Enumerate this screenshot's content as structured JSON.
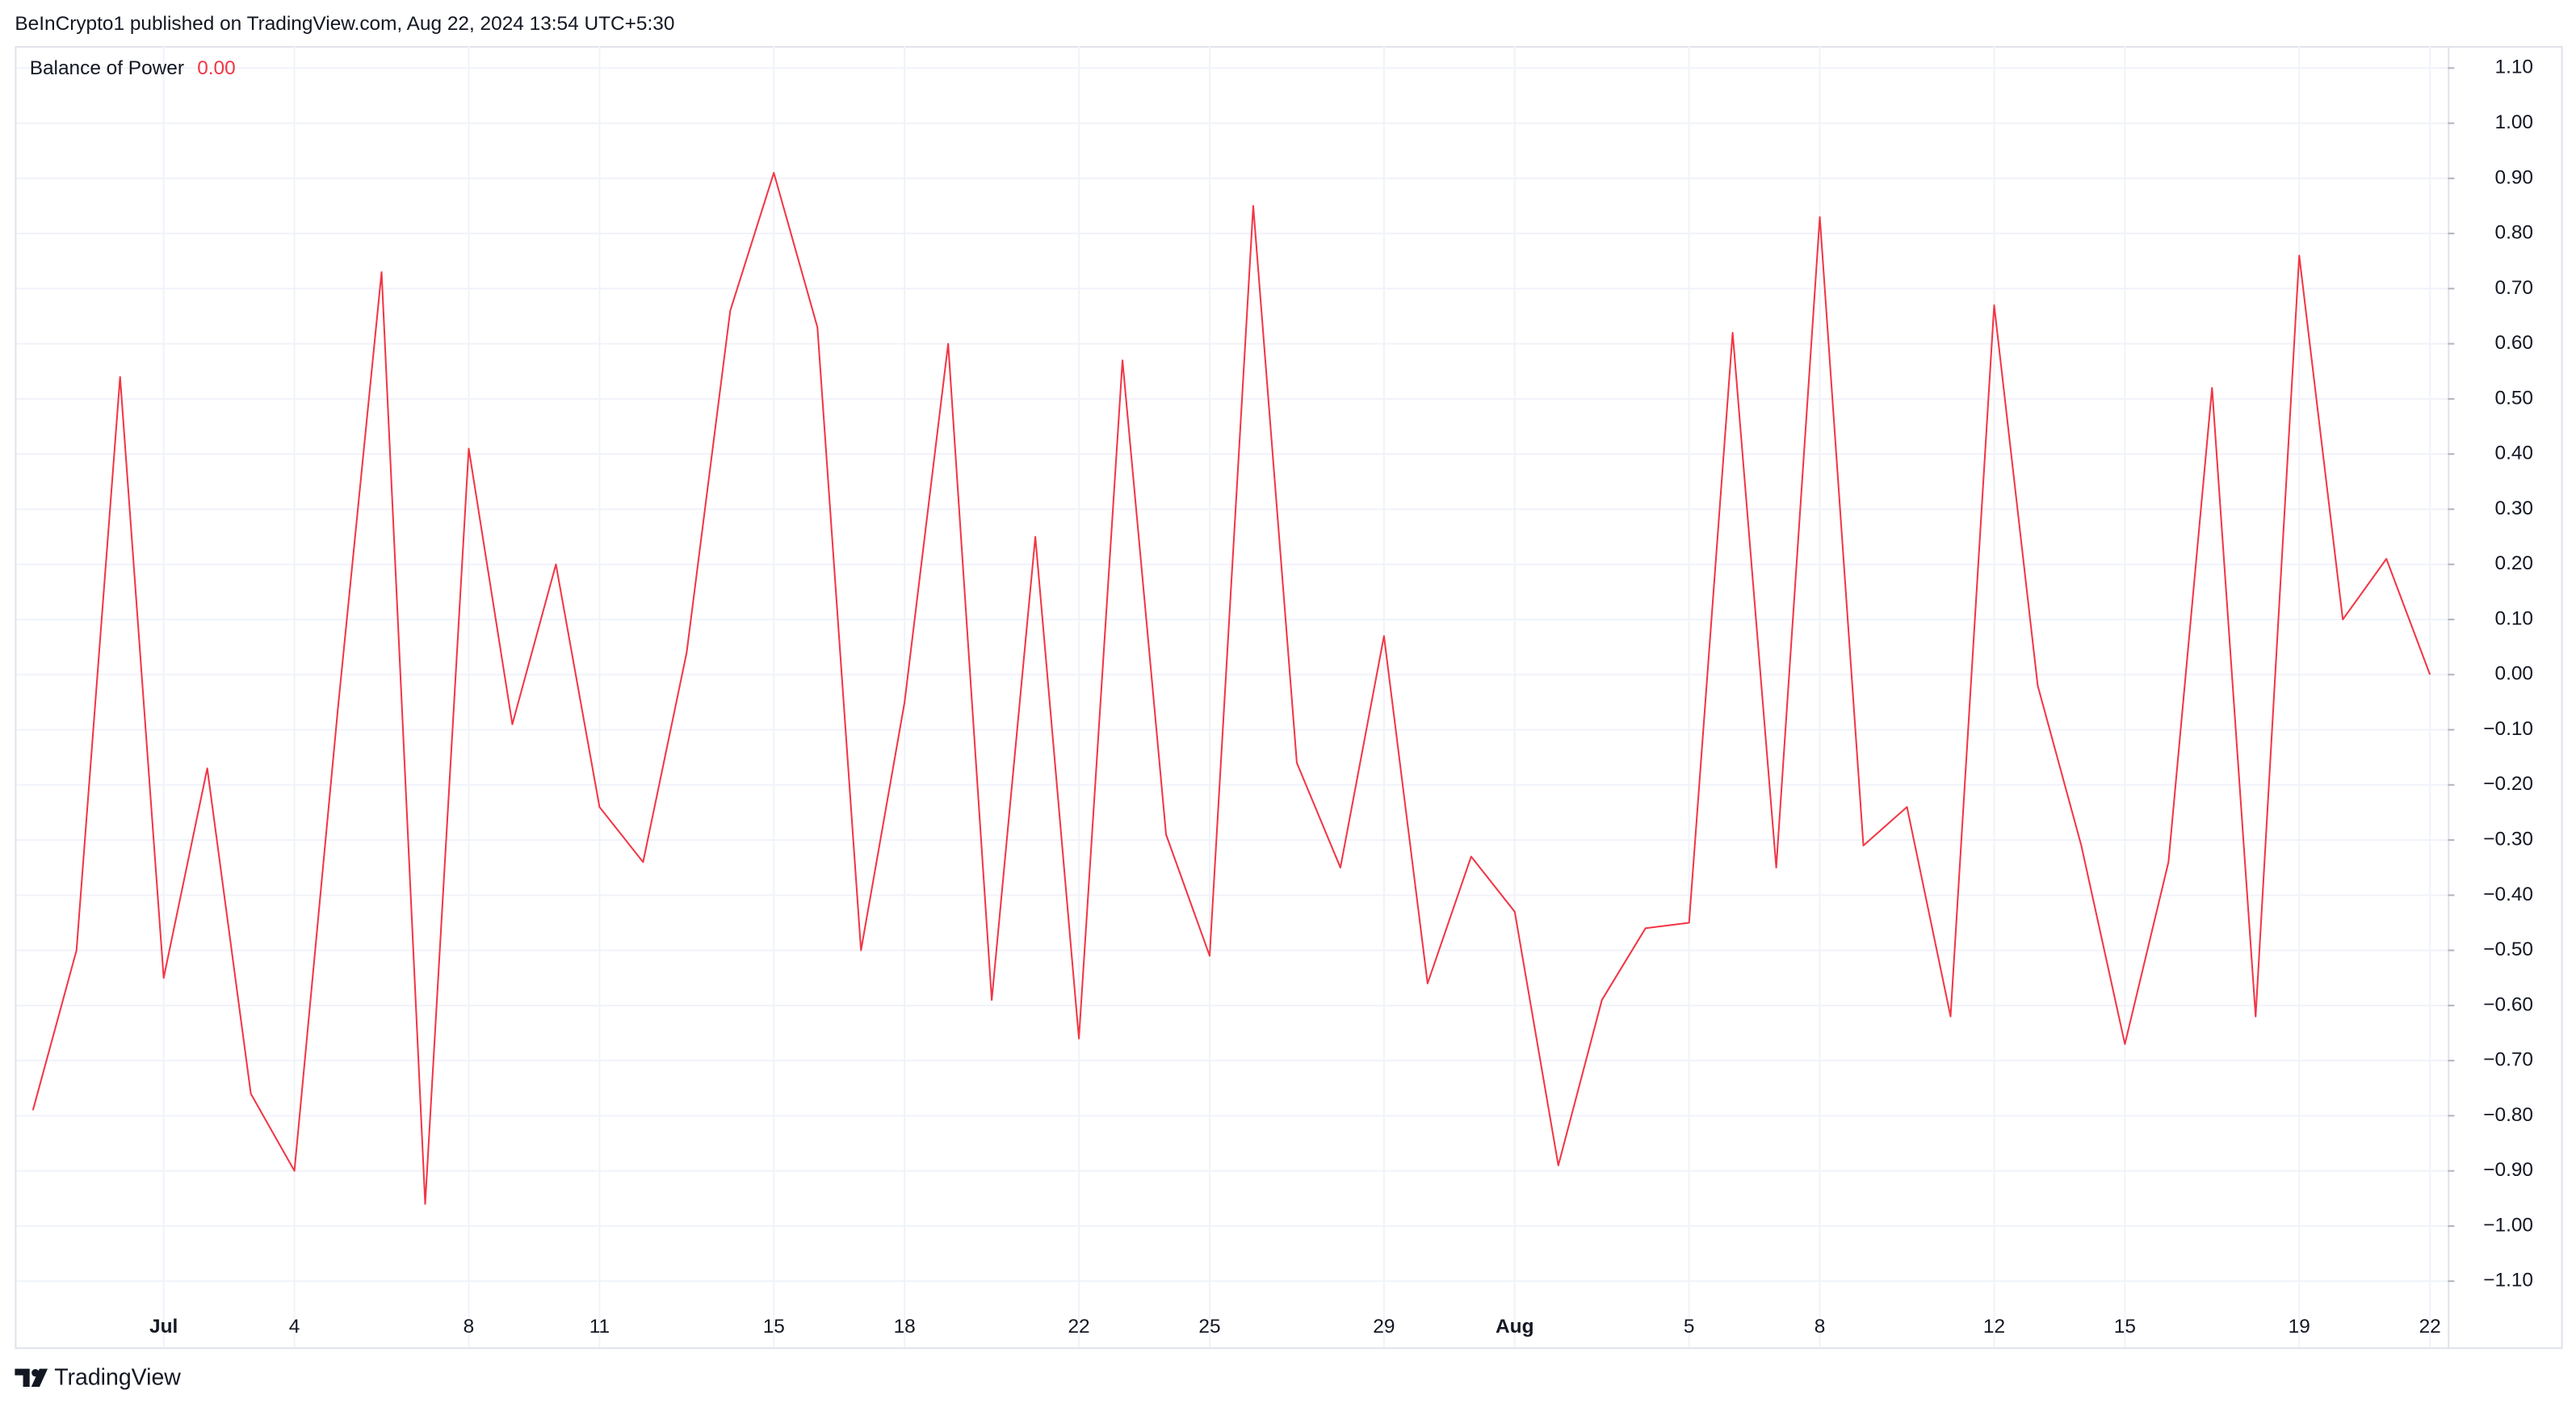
{
  "header": {
    "title": "BeInCrypto1 published on TradingView.com, Aug 22, 2024 13:54 UTC+5:30"
  },
  "footer": {
    "brand": "TradingView"
  },
  "chart_data": {
    "type": "line",
    "categories": [
      null,
      null,
      null,
      "Jul",
      null,
      null,
      "4",
      null,
      null,
      null,
      "8",
      null,
      null,
      "11",
      null,
      null,
      null,
      "15",
      null,
      null,
      "18",
      null,
      null,
      null,
      "22",
      null,
      null,
      "25",
      null,
      null,
      null,
      "29",
      null,
      null,
      "Aug",
      null,
      null,
      null,
      "5",
      null,
      null,
      "8",
      null,
      null,
      null,
      "12",
      null,
      null,
      "15",
      null,
      null,
      null,
      "19",
      null,
      null,
      "22"
    ],
    "series": [
      {
        "name": "Balance of Power",
        "color": "#f23645",
        "last_value_label": "0.00",
        "values": [
          -0.79,
          -0.5,
          0.54,
          -0.55,
          -0.17,
          -0.76,
          -0.9,
          -0.06,
          0.73,
          -0.96,
          0.41,
          -0.09,
          0.2,
          -0.24,
          -0.34,
          0.04,
          0.66,
          0.91,
          0.63,
          -0.5,
          -0.05,
          0.6,
          -0.59,
          0.25,
          -0.66,
          0.57,
          -0.29,
          -0.51,
          0.85,
          -0.16,
          -0.35,
          0.07,
          -0.56,
          -0.33,
          -0.43,
          -0.89,
          -0.59,
          -0.46,
          -0.45,
          0.62,
          -0.35,
          0.83,
          -0.31,
          -0.24,
          -0.62,
          0.67,
          -0.02,
          -0.31,
          -0.67,
          -0.34,
          0.52,
          -0.62,
          0.76,
          0.1,
          0.21,
          0
        ]
      }
    ],
    "ylim": [
      -1.22,
      1.14
    ],
    "yticks": [
      {
        "value": 1.1,
        "label": "1.10"
      },
      {
        "value": 1,
        "label": "1.00"
      },
      {
        "value": 0.9,
        "label": "0.90"
      },
      {
        "value": 0.8,
        "label": "0.80"
      },
      {
        "value": 0.7,
        "label": "0.70"
      },
      {
        "value": 0.6,
        "label": "0.60"
      },
      {
        "value": 0.5,
        "label": "0.50"
      },
      {
        "value": 0.4,
        "label": "0.40"
      },
      {
        "value": 0.3,
        "label": "0.30"
      },
      {
        "value": 0.2,
        "label": "0.20"
      },
      {
        "value": 0.1,
        "label": "0.10"
      },
      {
        "value": 0,
        "label": "0.00"
      },
      {
        "value": -0.1,
        "label": "−0.10"
      },
      {
        "value": -0.2,
        "label": "−0.20"
      },
      {
        "value": -0.3,
        "label": "−0.30"
      },
      {
        "value": -0.4,
        "label": "−0.40"
      },
      {
        "value": -0.5,
        "label": "−0.50"
      },
      {
        "value": -0.6,
        "label": "−0.60"
      },
      {
        "value": -0.7,
        "label": "−0.70"
      },
      {
        "value": -0.8,
        "label": "−0.80"
      },
      {
        "value": -0.9,
        "label": "−0.90"
      },
      {
        "value": -1,
        "label": "−1.00"
      },
      {
        "value": -1.1,
        "label": "−1.10"
      }
    ],
    "grid": true
  }
}
